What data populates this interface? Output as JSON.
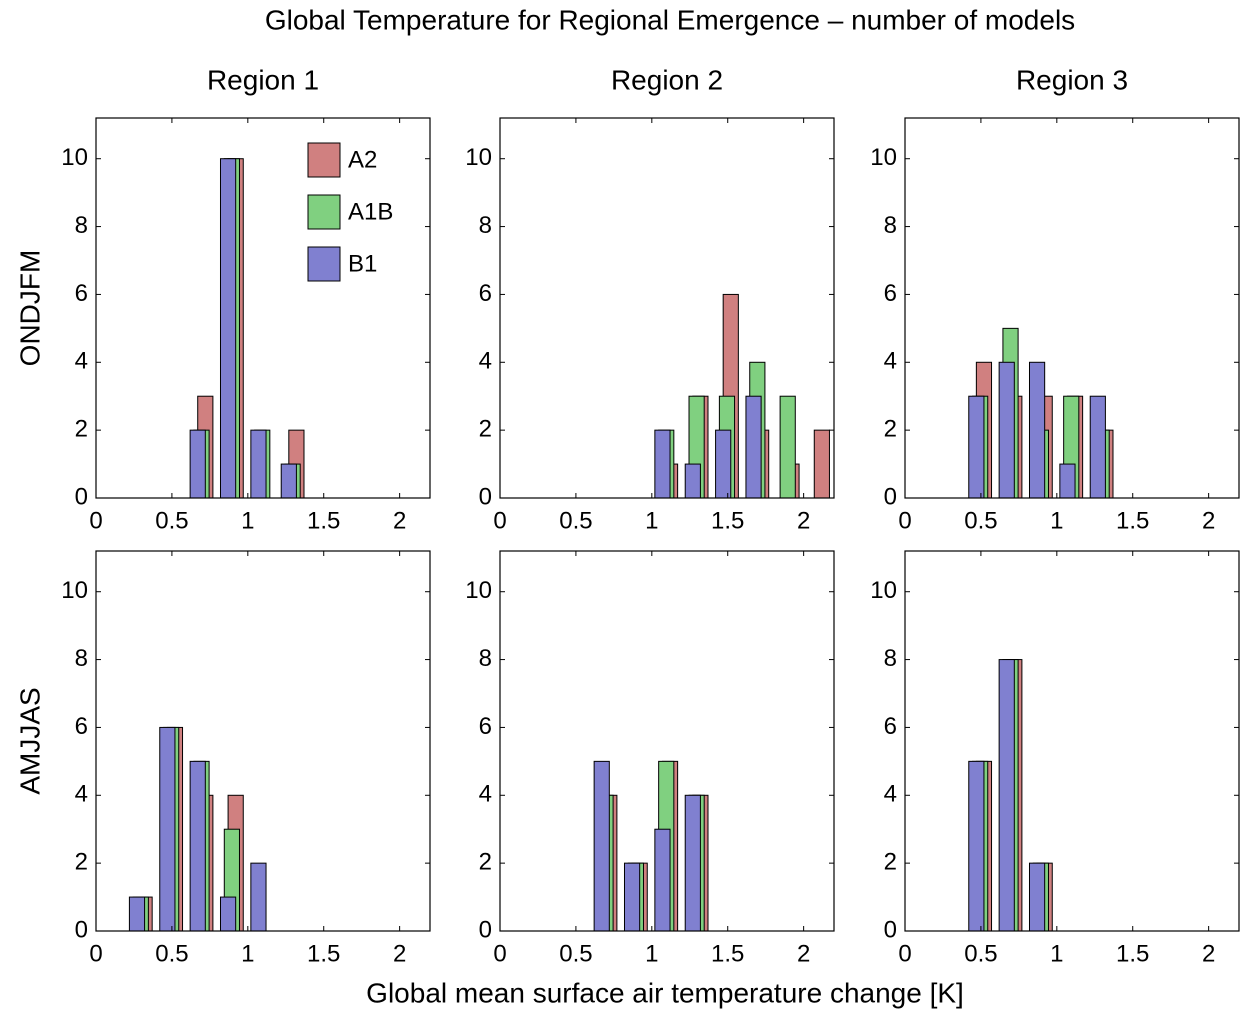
{
  "title": "Global Temperature for Regional Emergence – number of models",
  "xlabel": "Global mean surface air temperature change  [K]",
  "chart_data": [
    {
      "type": "bar",
      "title": "Region 1",
      "ylabel": "ONDJFM",
      "legend": "upper right",
      "x": [
        0.7,
        0.9,
        1.1,
        1.3
      ],
      "series": [
        {
          "name": "A2",
          "color": "#d08080",
          "values": [
            3,
            10,
            0,
            2
          ]
        },
        {
          "name": "A1B",
          "color": "#80d080",
          "values": [
            2,
            10,
            2,
            1
          ]
        },
        {
          "name": "B1",
          "color": "#8080d0",
          "values": [
            2,
            10,
            2,
            1
          ]
        }
      ],
      "xlim": [
        0,
        2.2
      ],
      "xticks": [
        0,
        0.5,
        1,
        1.5,
        2
      ],
      "ylim": [
        0,
        11.2
      ],
      "yticks": [
        0,
        2,
        4,
        6,
        8,
        10
      ]
    },
    {
      "type": "bar",
      "title": "Region 2",
      "x": [
        1.1,
        1.3,
        1.5,
        1.7,
        1.9,
        2.1
      ],
      "series": [
        {
          "color": "#d08080",
          "values": [
            1,
            3,
            6,
            2,
            1,
            2
          ]
        },
        {
          "color": "#80d080",
          "values": [
            2,
            3,
            3,
            4,
            3,
            0
          ]
        },
        {
          "color": "#8080d0",
          "values": [
            2,
            1,
            2,
            3,
            0,
            0
          ]
        }
      ],
      "xlim": [
        0,
        2.2
      ],
      "xticks": [
        0,
        0.5,
        1,
        1.5,
        2
      ],
      "ylim": [
        0,
        11.2
      ],
      "yticks": [
        0,
        2,
        4,
        6,
        8,
        10
      ]
    },
    {
      "type": "bar",
      "title": "Region 3",
      "x": [
        0.5,
        0.7,
        0.9,
        1.1,
        1.3
      ],
      "series": [
        {
          "color": "#d08080",
          "values": [
            4,
            3,
            3,
            3,
            2
          ]
        },
        {
          "color": "#80d080",
          "values": [
            3,
            5,
            2,
            3,
            2
          ]
        },
        {
          "color": "#8080d0",
          "values": [
            3,
            4,
            4,
            1,
            3
          ]
        }
      ],
      "xlim": [
        0,
        2.2
      ],
      "xticks": [
        0,
        0.5,
        1,
        1.5,
        2
      ],
      "ylim": [
        0,
        11.2
      ],
      "yticks": [
        0,
        2,
        4,
        6,
        8,
        10
      ]
    },
    {
      "type": "bar",
      "ylabel": "AMJJAS",
      "x": [
        0.3,
        0.5,
        0.7,
        0.9,
        1.1
      ],
      "series": [
        {
          "color": "#d08080",
          "values": [
            1,
            6,
            4,
            4,
            0
          ]
        },
        {
          "color": "#80d080",
          "values": [
            1,
            6,
            5,
            3,
            0
          ]
        },
        {
          "color": "#8080d0",
          "values": [
            1,
            6,
            5,
            1,
            2
          ]
        }
      ],
      "xlim": [
        0,
        2.2
      ],
      "xticks": [
        0,
        0.5,
        1,
        1.5,
        2
      ],
      "ylim": [
        0,
        11.2
      ],
      "yticks": [
        0,
        2,
        4,
        6,
        8,
        10
      ]
    },
    {
      "type": "bar",
      "x": [
        0.7,
        0.9,
        1.1,
        1.3
      ],
      "series": [
        {
          "color": "#d08080",
          "values": [
            4,
            2,
            5,
            4
          ]
        },
        {
          "color": "#80d080",
          "values": [
            4,
            2,
            5,
            4
          ]
        },
        {
          "color": "#8080d0",
          "values": [
            5,
            2,
            3,
            4
          ]
        }
      ],
      "xlim": [
        0,
        2.2
      ],
      "xticks": [
        0,
        0.5,
        1,
        1.5,
        2
      ],
      "ylim": [
        0,
        11.2
      ],
      "yticks": [
        0,
        2,
        4,
        6,
        8,
        10
      ]
    },
    {
      "type": "bar",
      "x": [
        0.5,
        0.7,
        0.9
      ],
      "series": [
        {
          "color": "#d08080",
          "values": [
            5,
            8,
            2
          ]
        },
        {
          "color": "#80d080",
          "values": [
            5,
            8,
            2
          ]
        },
        {
          "color": "#8080d0",
          "values": [
            5,
            8,
            2
          ]
        }
      ],
      "xlim": [
        0,
        2.2
      ],
      "xticks": [
        0,
        0.5,
        1,
        1.5,
        2
      ],
      "ylim": [
        0,
        11.2
      ],
      "yticks": [
        0,
        2,
        4,
        6,
        8,
        10
      ]
    }
  ]
}
